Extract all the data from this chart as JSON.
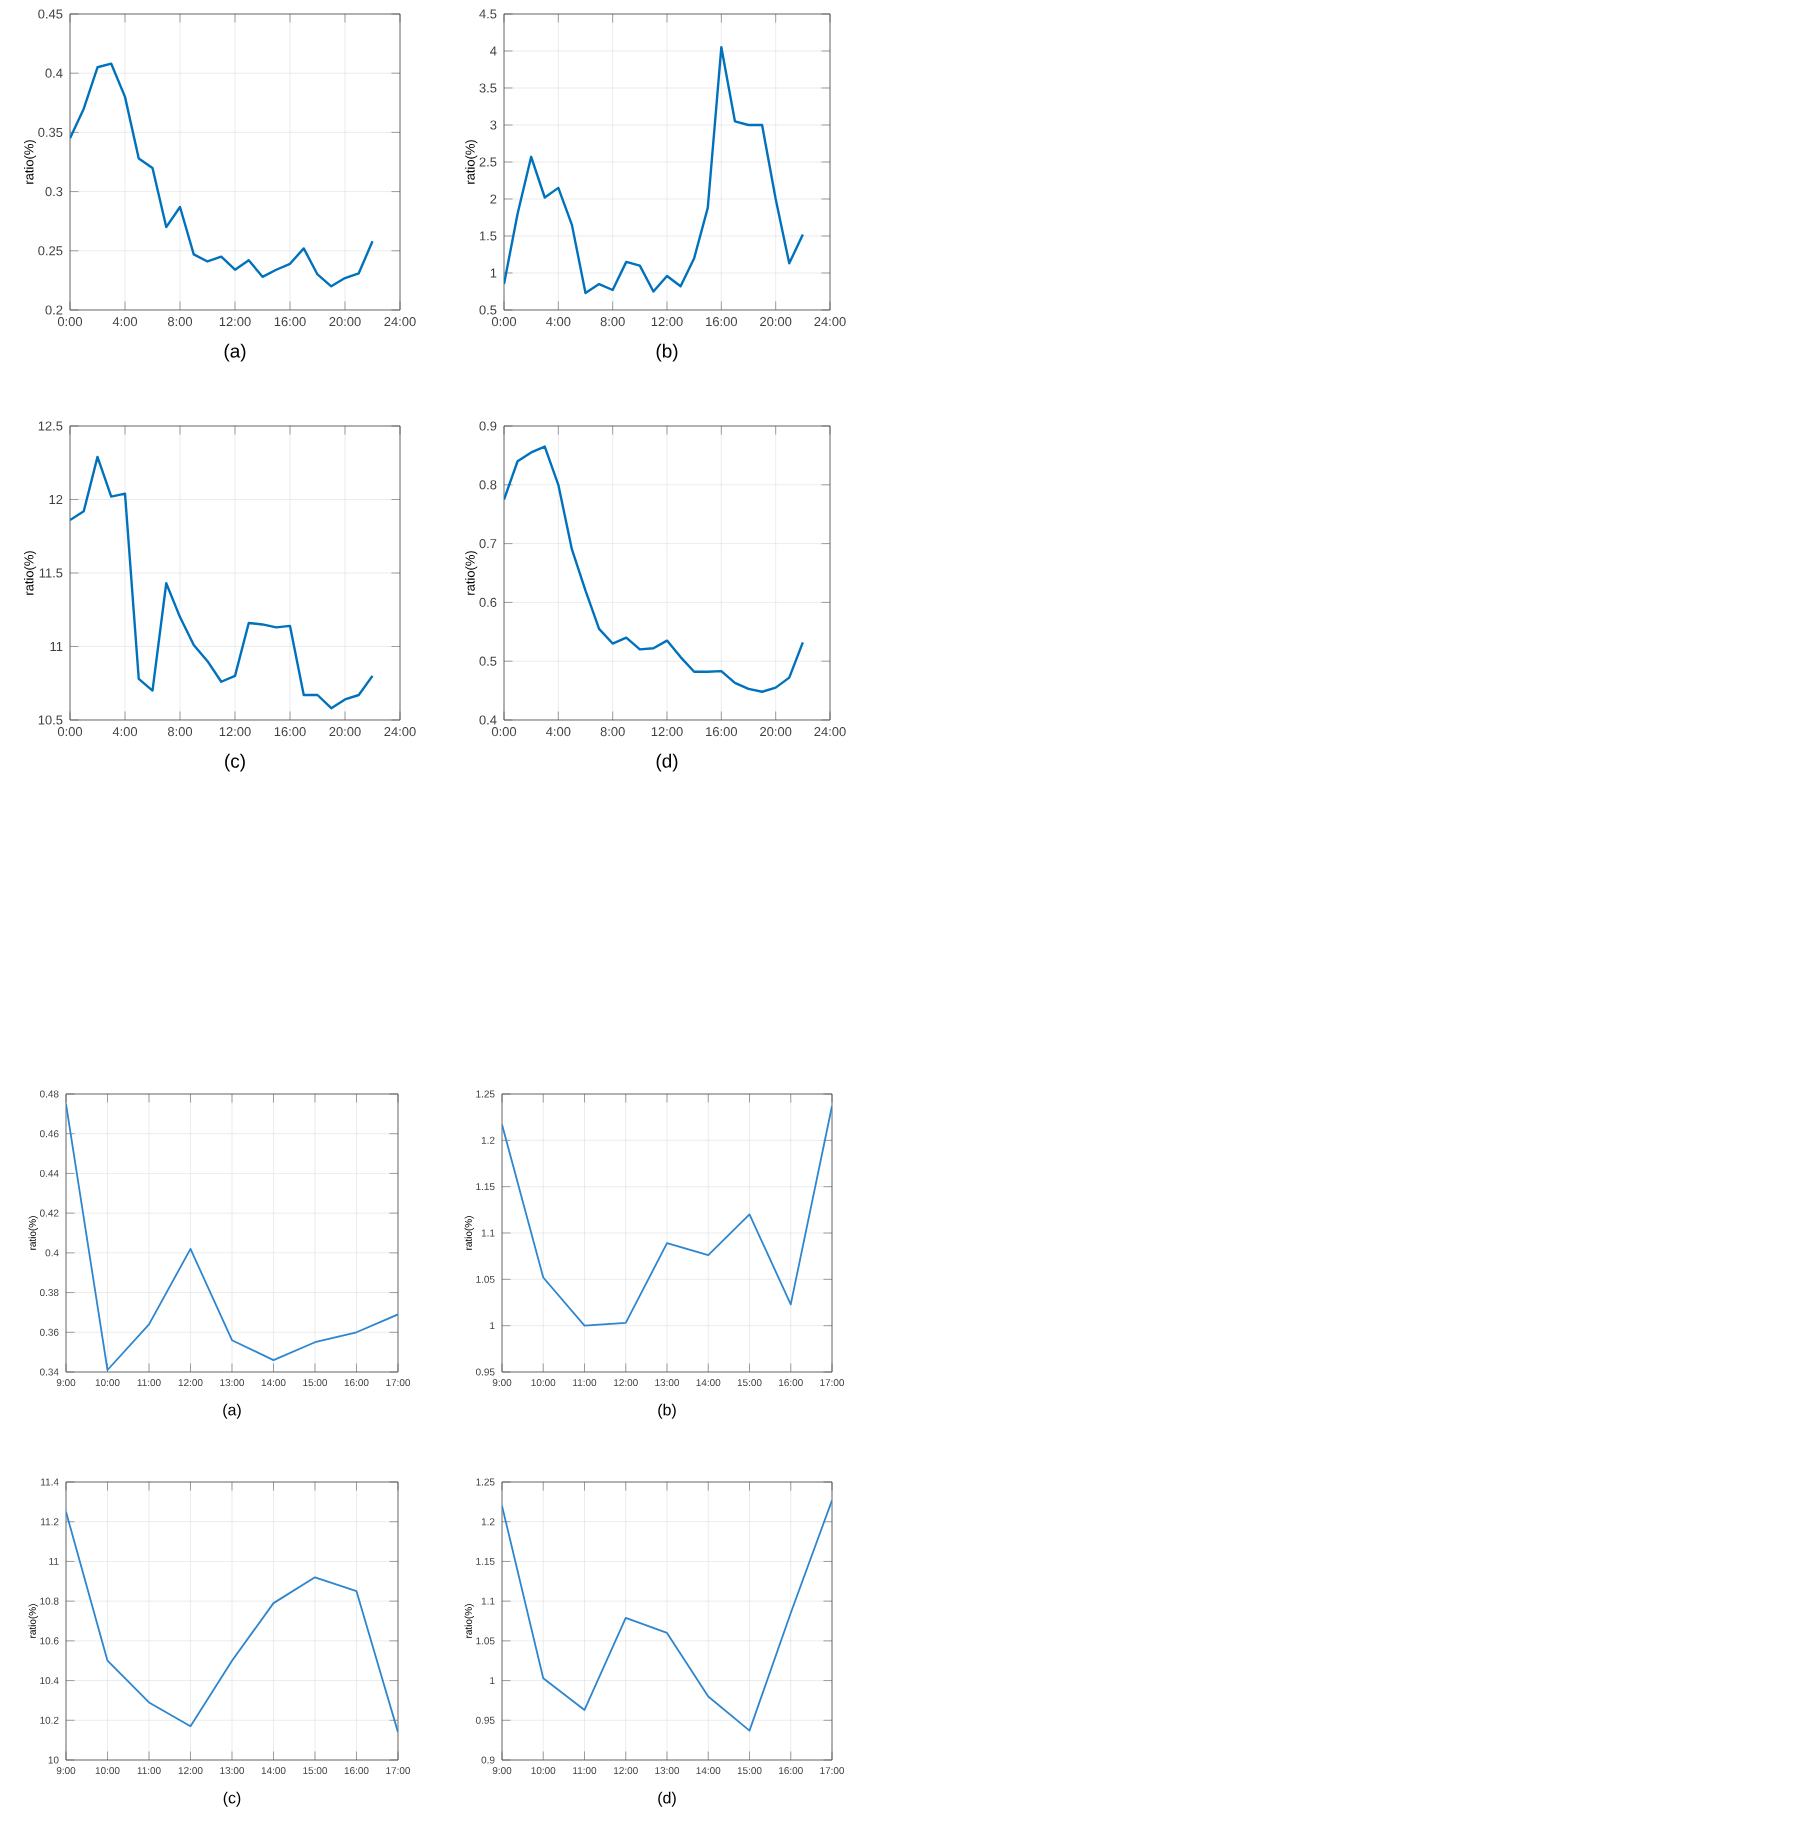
{
  "chart_data": [
    {
      "type": "line",
      "xlabel": "(a)",
      "ylabel": "ratio(%)",
      "color": "#0072bd",
      "grid": true,
      "x": [
        0,
        1,
        2,
        3,
        4,
        5,
        6,
        7,
        8,
        9,
        10,
        11,
        12,
        13,
        14,
        15,
        16,
        17,
        18,
        19,
        20,
        21,
        22
      ],
      "values": [
        0.345,
        0.37,
        0.405,
        0.408,
        0.38,
        0.328,
        0.32,
        0.27,
        0.287,
        0.247,
        0.241,
        0.245,
        0.234,
        0.242,
        0.228,
        0.234,
        0.239,
        0.252,
        0.23,
        0.22,
        0.227,
        0.231,
        0.258
      ],
      "xlim": [
        0,
        24
      ],
      "ylim": [
        0.2,
        0.45
      ],
      "xticks": [
        {
          "value": 0,
          "label": "0:00"
        },
        {
          "value": 4,
          "label": "4:00"
        },
        {
          "value": 8,
          "label": "8:00"
        },
        {
          "value": 12,
          "label": "12:00"
        },
        {
          "value": 16,
          "label": "16:00"
        },
        {
          "value": 20,
          "label": "20:00"
        },
        {
          "value": 24,
          "label": "24:00"
        }
      ],
      "yticks": [
        0.2,
        0.25,
        0.3,
        0.35,
        0.4,
        0.45
      ]
    },
    {
      "type": "line",
      "xlabel": "(b)",
      "ylabel": "ratio(%)",
      "color": "#0072bd",
      "grid": true,
      "x": [
        0,
        1,
        2,
        3,
        4,
        5,
        6,
        7,
        8,
        9,
        10,
        11,
        12,
        13,
        14,
        15,
        16,
        17,
        18,
        19,
        20,
        21,
        22
      ],
      "values": [
        0.85,
        1.8,
        2.57,
        2.02,
        2.15,
        1.65,
        0.73,
        0.85,
        0.77,
        1.15,
        1.1,
        0.75,
        0.96,
        0.82,
        1.2,
        1.88,
        4.05,
        3.05,
        3.0,
        3.0,
        2.0,
        1.13,
        1.52
      ],
      "xlim": [
        0,
        24
      ],
      "ylim": [
        0.5,
        4.5
      ],
      "xticks": [
        {
          "value": 0,
          "label": "0:00"
        },
        {
          "value": 4,
          "label": "4:00"
        },
        {
          "value": 8,
          "label": "8:00"
        },
        {
          "value": 12,
          "label": "12:00"
        },
        {
          "value": 16,
          "label": "16:00"
        },
        {
          "value": 20,
          "label": "20:00"
        },
        {
          "value": 24,
          "label": "24:00"
        }
      ],
      "yticks": [
        0.5,
        1,
        1.5,
        2,
        2.5,
        3,
        3.5,
        4,
        4.5
      ]
    },
    {
      "type": "line",
      "xlabel": "(c)",
      "ylabel": "ratio(%)",
      "color": "#0072bd",
      "grid": true,
      "x": [
        0,
        1,
        2,
        3,
        4,
        5,
        6,
        7,
        8,
        9,
        10,
        11,
        12,
        13,
        14,
        15,
        16,
        17,
        18,
        19,
        20,
        21,
        22
      ],
      "values": [
        11.86,
        11.92,
        12.29,
        12.02,
        12.04,
        10.78,
        10.7,
        11.43,
        11.2,
        11.01,
        10.9,
        10.76,
        10.8,
        11.16,
        11.15,
        11.13,
        11.14,
        10.67,
        10.67,
        10.58,
        10.64,
        10.67,
        10.8
      ],
      "xlim": [
        0,
        24
      ],
      "ylim": [
        10.5,
        12.5
      ],
      "xticks": [
        {
          "value": 0,
          "label": "0:00"
        },
        {
          "value": 4,
          "label": "4:00"
        },
        {
          "value": 8,
          "label": "8:00"
        },
        {
          "value": 12,
          "label": "12:00"
        },
        {
          "value": 16,
          "label": "16:00"
        },
        {
          "value": 20,
          "label": "20:00"
        },
        {
          "value": 24,
          "label": "24:00"
        }
      ],
      "yticks": [
        10.5,
        11,
        11.5,
        12,
        12.5
      ]
    },
    {
      "type": "line",
      "xlabel": "(d)",
      "ylabel": "ratio(%)",
      "color": "#0072bd",
      "grid": true,
      "x": [
        0,
        1,
        2,
        3,
        4,
        5,
        6,
        7,
        8,
        9,
        10,
        11,
        12,
        13,
        14,
        15,
        16,
        17,
        18,
        19,
        20,
        21,
        22
      ],
      "values": [
        0.775,
        0.84,
        0.855,
        0.865,
        0.8,
        0.69,
        0.62,
        0.555,
        0.53,
        0.54,
        0.52,
        0.522,
        0.535,
        0.507,
        0.482,
        0.482,
        0.483,
        0.463,
        0.453,
        0.448,
        0.455,
        0.472,
        0.532
      ],
      "xlim": [
        0,
        24
      ],
      "ylim": [
        0.4,
        0.9
      ],
      "xticks": [
        {
          "value": 0,
          "label": "0:00"
        },
        {
          "value": 4,
          "label": "4:00"
        },
        {
          "value": 8,
          "label": "8:00"
        },
        {
          "value": 12,
          "label": "12:00"
        },
        {
          "value": 16,
          "label": "16:00"
        },
        {
          "value": 20,
          "label": "20:00"
        },
        {
          "value": 24,
          "label": "24:00"
        }
      ],
      "yticks": [
        0.4,
        0.5,
        0.6,
        0.7,
        0.8,
        0.9
      ]
    },
    {
      "type": "line",
      "xlabel": "(a)",
      "ylabel": "ratio(%)",
      "color": "#2e86d0",
      "grid": true,
      "x": [
        9,
        10,
        11,
        12,
        13,
        14,
        15,
        16,
        17
      ],
      "values": [
        0.475,
        0.341,
        0.364,
        0.402,
        0.356,
        0.346,
        0.355,
        0.36,
        0.369
      ],
      "xlim": [
        9,
        17
      ],
      "ylim": [
        0.34,
        0.48
      ],
      "xticks": [
        {
          "value": 9,
          "label": "9:00"
        },
        {
          "value": 10,
          "label": "10:00"
        },
        {
          "value": 11,
          "label": "11:00"
        },
        {
          "value": 12,
          "label": "12:00"
        },
        {
          "value": 13,
          "label": "13:00"
        },
        {
          "value": 14,
          "label": "14:00"
        },
        {
          "value": 15,
          "label": "15:00"
        },
        {
          "value": 16,
          "label": "16:00"
        },
        {
          "value": 17,
          "label": "17:00"
        }
      ],
      "yticks": [
        0.34,
        0.36,
        0.38,
        0.4,
        0.42,
        0.44,
        0.46,
        0.48
      ]
    },
    {
      "type": "line",
      "xlabel": "(b)",
      "ylabel": "ratio(%)",
      "color": "#2e86d0",
      "grid": true,
      "x": [
        9,
        10,
        11,
        12,
        13,
        14,
        15,
        16,
        17
      ],
      "values": [
        1.217,
        1.052,
        1.0,
        1.003,
        1.089,
        1.076,
        1.12,
        1.023,
        1.237
      ],
      "xlim": [
        9,
        17
      ],
      "ylim": [
        0.95,
        1.25
      ],
      "xticks": [
        {
          "value": 9,
          "label": "9:00"
        },
        {
          "value": 10,
          "label": "10:00"
        },
        {
          "value": 11,
          "label": "11:00"
        },
        {
          "value": 12,
          "label": "12:00"
        },
        {
          "value": 13,
          "label": "13:00"
        },
        {
          "value": 14,
          "label": "14:00"
        },
        {
          "value": 15,
          "label": "15:00"
        },
        {
          "value": 16,
          "label": "16:00"
        },
        {
          "value": 17,
          "label": "17:00"
        }
      ],
      "yticks": [
        0.95,
        1,
        1.05,
        1.1,
        1.15,
        1.2,
        1.25
      ]
    },
    {
      "type": "line",
      "xlabel": "(c)",
      "ylabel": "ratio(%)",
      "color": "#2e86d0",
      "grid": true,
      "x": [
        9,
        10,
        11,
        12,
        13,
        14,
        15,
        16,
        17
      ],
      "values": [
        11.25,
        10.5,
        10.29,
        10.17,
        10.5,
        10.79,
        10.92,
        10.85,
        10.14
      ],
      "xlim": [
        9,
        17
      ],
      "ylim": [
        10,
        11.4
      ],
      "xticks": [
        {
          "value": 9,
          "label": "9:00"
        },
        {
          "value": 10,
          "label": "10:00"
        },
        {
          "value": 11,
          "label": "11:00"
        },
        {
          "value": 12,
          "label": "12:00"
        },
        {
          "value": 13,
          "label": "13:00"
        },
        {
          "value": 14,
          "label": "14:00"
        },
        {
          "value": 15,
          "label": "15:00"
        },
        {
          "value": 16,
          "label": "16:00"
        },
        {
          "value": 17,
          "label": "17:00"
        }
      ],
      "yticks": [
        10,
        10.2,
        10.4,
        10.6,
        10.8,
        11,
        11.2,
        11.4
      ]
    },
    {
      "type": "line",
      "xlabel": "(d)",
      "ylabel": "ratio(%)",
      "color": "#2e86d0",
      "grid": true,
      "x": [
        9,
        10,
        11,
        12,
        13,
        14,
        15,
        16,
        17
      ],
      "values": [
        1.22,
        1.003,
        0.963,
        1.079,
        1.06,
        0.98,
        0.937,
        1.085,
        1.227
      ],
      "xlim": [
        9,
        17
      ],
      "ylim": [
        0.9,
        1.25
      ],
      "xticks": [
        {
          "value": 9,
          "label": "9:00"
        },
        {
          "value": 10,
          "label": "10:00"
        },
        {
          "value": 11,
          "label": "11:00"
        },
        {
          "value": 12,
          "label": "12:00"
        },
        {
          "value": 13,
          "label": "13:00"
        },
        {
          "value": 14,
          "label": "14:00"
        },
        {
          "value": 15,
          "label": "15:00"
        },
        {
          "value": 16,
          "label": "16:00"
        },
        {
          "value": 17,
          "label": "17:00"
        }
      ],
      "yticks": [
        0.9,
        0.95,
        1,
        1.05,
        1.1,
        1.15,
        1.2,
        1.25
      ]
    }
  ]
}
